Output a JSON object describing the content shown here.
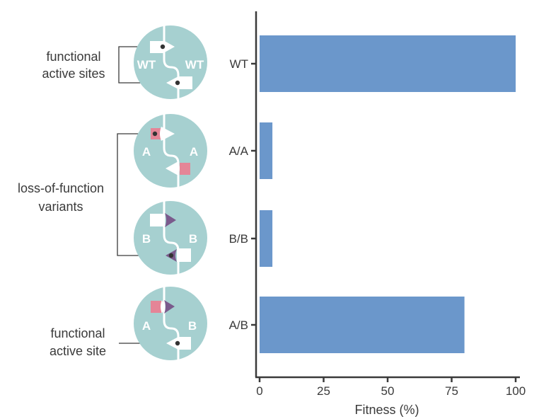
{
  "colors": {
    "bar": "#6b97cb",
    "circle": "#a6d0d0",
    "variant_a": "#e58597",
    "variant_b": "#7a5a8c",
    "axis": "#3a3a3a"
  },
  "annotations": {
    "functional_active_sites": [
      "functional",
      "active sites"
    ],
    "loss_of_function_variants": [
      "loss-of-function",
      "variants"
    ],
    "functional_active_site": [
      "functional",
      "active site"
    ]
  },
  "diagrams": [
    {
      "left_label": "WT",
      "right_label": "WT"
    },
    {
      "left_label": "A",
      "right_label": "A"
    },
    {
      "left_label": "B",
      "right_label": "B"
    },
    {
      "left_label": "A",
      "right_label": "B"
    }
  ],
  "chart_data": {
    "type": "bar",
    "orientation": "horizontal",
    "categories": [
      "WT",
      "A/A",
      "B/B",
      "A/B"
    ],
    "values": [
      100,
      5,
      5,
      80
    ],
    "title": "",
    "xlabel": "Fitness (%)",
    "ylabel": "",
    "xlim": [
      0,
      100
    ],
    "xticks": [
      0,
      25,
      50,
      75,
      100
    ],
    "xtick_labels": [
      "0",
      "25",
      "50",
      "75",
      "100"
    ],
    "grid": false,
    "legend": "none"
  }
}
